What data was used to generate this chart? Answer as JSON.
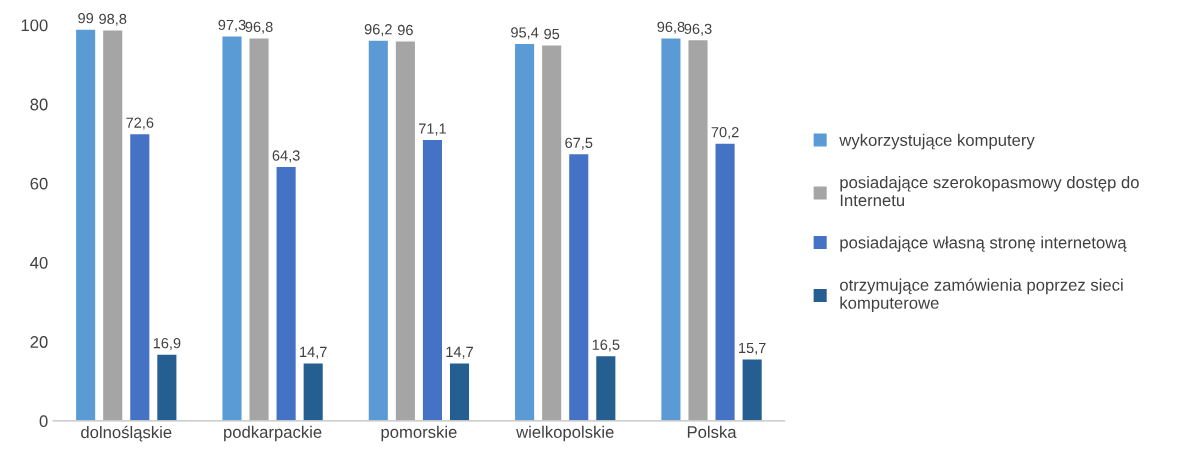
{
  "chart_data": {
    "type": "bar",
    "categories": [
      "dolnośląskie",
      "podkarpackie",
      "pomorskie",
      "wielkopolskie",
      "Polska"
    ],
    "series": [
      {
        "name": "wykorzystujące komputery",
        "color": "#5b9bd5",
        "values": [
          99,
          97.3,
          96.2,
          95.4,
          96.8
        ],
        "value_labels": [
          "99",
          "97,3",
          "96,2",
          "95,4",
          "96,8"
        ]
      },
      {
        "name": "posiadające szerokopasmowy dostęp do\nInternetu",
        "color": "#a5a5a5",
        "values": [
          98.8,
          96.8,
          96,
          95,
          96.3
        ],
        "value_labels": [
          "98,8",
          "96,8",
          "96",
          "95",
          "96,3"
        ]
      },
      {
        "name": "posiadające własną stronę internetową",
        "color": "#4472c4",
        "values": [
          72.6,
          64.3,
          71.1,
          67.5,
          70.2
        ],
        "value_labels": [
          "72,6",
          "64,3",
          "71,1",
          "67,5",
          "70,2"
        ]
      },
      {
        "name": "otrzymujące zamówienia poprzez sieci\nkomputerowe",
        "color": "#255e91",
        "values": [
          16.9,
          14.7,
          14.7,
          16.5,
          15.7
        ],
        "value_labels": [
          "16,9",
          "14,7",
          "14,7",
          "16,5",
          "15,7"
        ]
      }
    ],
    "ylim": [
      0,
      100
    ],
    "yticks": [
      0,
      20,
      40,
      60,
      80,
      100
    ],
    "legend": "right"
  }
}
